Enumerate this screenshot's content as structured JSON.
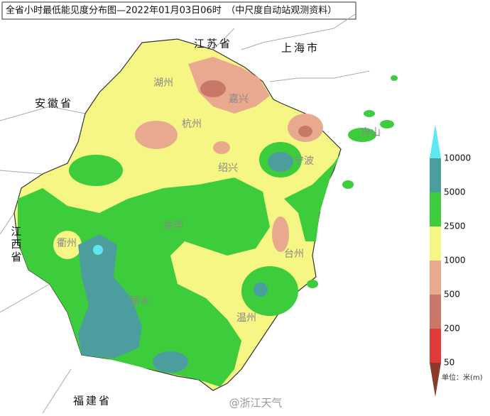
{
  "header": {
    "title": "全省小时最低能见度分布图—2022年01月03日06时　（中尺度自动站观测资料）"
  },
  "neighbors": [
    "江苏省",
    "上海市",
    "安徽省",
    "江西省",
    "福建省"
  ],
  "cities": [
    "湖州",
    "嘉兴",
    "杭州",
    "绍兴",
    "宁波",
    "舟山",
    "衢州",
    "金华",
    "台州",
    "丽水",
    "温州"
  ],
  "legend": {
    "labels": [
      10000,
      5000,
      2500,
      1000,
      500,
      200,
      50
    ],
    "colors": [
      "#5ee8f0",
      "#4c9e9e",
      "#3ccc3c",
      "#f6f685",
      "#e9a98e",
      "#c97766",
      "#e03a3a",
      "#8c3a2c"
    ],
    "unit": "单位：米(m)"
  },
  "watermark": "@浙江天气"
}
